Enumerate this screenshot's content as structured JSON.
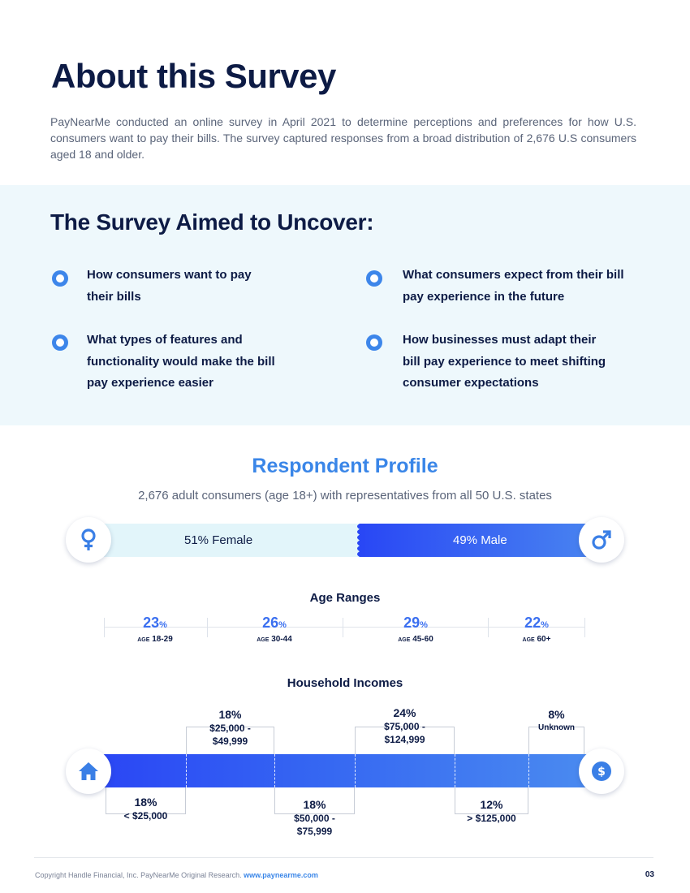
{
  "header": {
    "title": "About this Survey",
    "intro": "PayNearMe conducted an online survey in April 2021 to determine perceptions and preferences for how U.S. consumers want to pay their bills. The survey captured responses from a broad distribution of 2,676 U.S consumers aged 18 and older."
  },
  "aims": {
    "title": "The Survey Aimed to Uncover:",
    "items": [
      {
        "lines": [
          "How consumers want to pay",
          "their bills"
        ]
      },
      {
        "lines": [
          "What consumers expect from their bill",
          "pay experience in the future"
        ]
      },
      {
        "lines": [
          "What types of features and",
          "functionality would make the bill",
          "pay experience easier"
        ]
      },
      {
        "lines": [
          "How businesses must adapt their",
          "bill pay experience to meet shifting",
          "consumer expectations"
        ]
      }
    ]
  },
  "profile": {
    "title": "Respondent Profile",
    "subtitle": "2,676 adult consumers (age 18+) with representatives from all 50 U.S. states",
    "female_pct": 51,
    "male_pct": 49,
    "female_label": "51% Female",
    "male_label": "49% Male",
    "female_icon": "female-symbol-icon",
    "male_icon": "male-symbol-icon"
  },
  "ages": {
    "title": "Age Ranges",
    "items": [
      {
        "value": "23",
        "unit": "%",
        "prefix": "AGE",
        "range": "18-29"
      },
      {
        "value": "26",
        "unit": "%",
        "prefix": "AGE",
        "range": "30-44"
      },
      {
        "value": "29",
        "unit": "%",
        "prefix": "AGE",
        "range": "45-60"
      },
      {
        "value": "22",
        "unit": "%",
        "prefix": "AGE",
        "range": "60+"
      }
    ]
  },
  "incomes": {
    "title": "Household Incomes",
    "home_icon": "home-icon",
    "dollar_icon": "dollar-icon",
    "segments": [
      {
        "pct": "18%",
        "lines": [
          "< $25,000"
        ]
      },
      {
        "pct": "18%",
        "lines": [
          "$25,000 -",
          "$49,999"
        ]
      },
      {
        "pct": "18%",
        "lines": [
          "$50,000 -",
          "$75,999"
        ]
      },
      {
        "pct": "24%",
        "lines": [
          "$75,000 -",
          "$124,999"
        ]
      },
      {
        "pct": "12%",
        "lines": [
          "> $125,000"
        ]
      },
      {
        "pct": "8%",
        "lines": [
          "Unknown"
        ]
      }
    ]
  },
  "colors": {
    "navy": "#0d1b45",
    "accent": "#3a86e8",
    "bar_start": "#2a45f5",
    "bar_end": "#4a8af0",
    "panel": "#eef8fc"
  },
  "footer": {
    "copyright": "Copyright Handle Financial, Inc. PayNearMe Original Research.",
    "url": "www.paynearme.com",
    "page": "03"
  }
}
